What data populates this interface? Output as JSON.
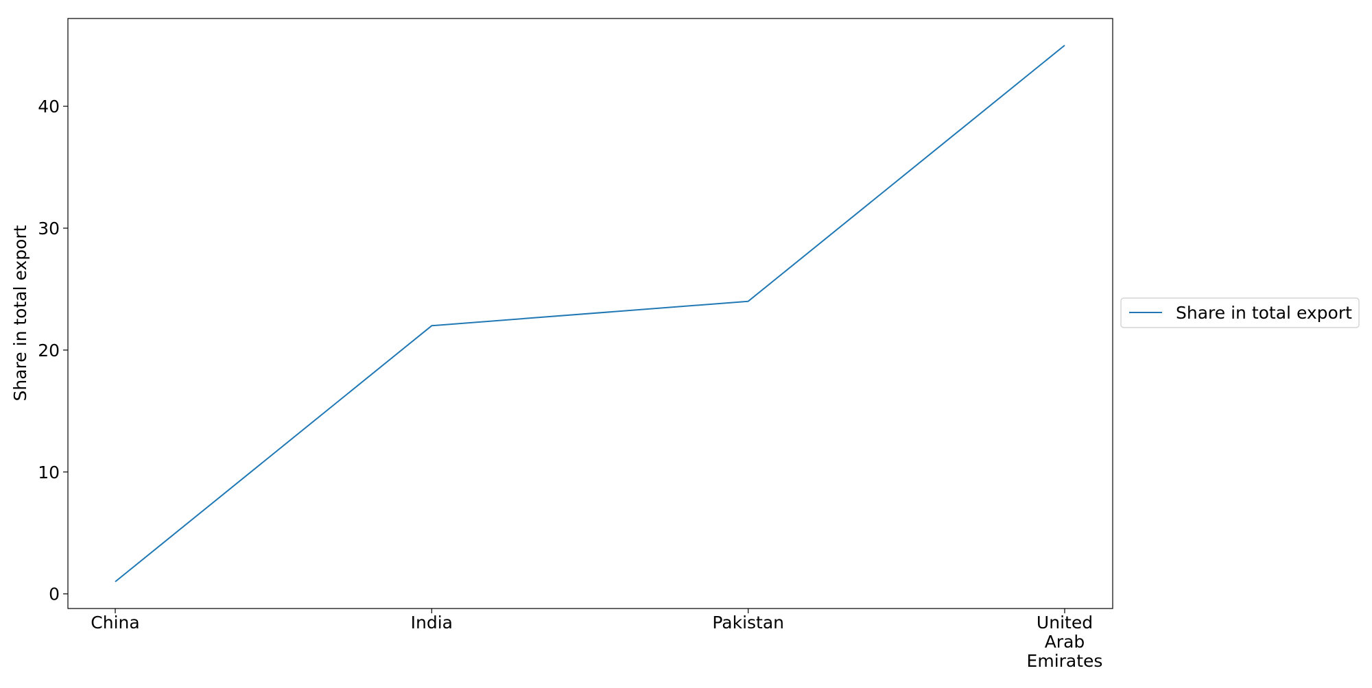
{
  "chart_data": {
    "type": "line",
    "title": "",
    "xlabel": "",
    "ylabel": "Share in total export",
    "categories": [
      "China",
      "India",
      "Pakistan",
      "United\nArab\nEmirates"
    ],
    "series": [
      {
        "name": "Share in total export",
        "values": [
          1,
          22,
          24,
          45
        ],
        "color": "#1f77b4"
      }
    ],
    "ylim": [
      -1.2,
      47.2
    ],
    "yticks": [
      0,
      10,
      20,
      30,
      40
    ],
    "grid": false,
    "legend_position": "center-right-outside"
  }
}
